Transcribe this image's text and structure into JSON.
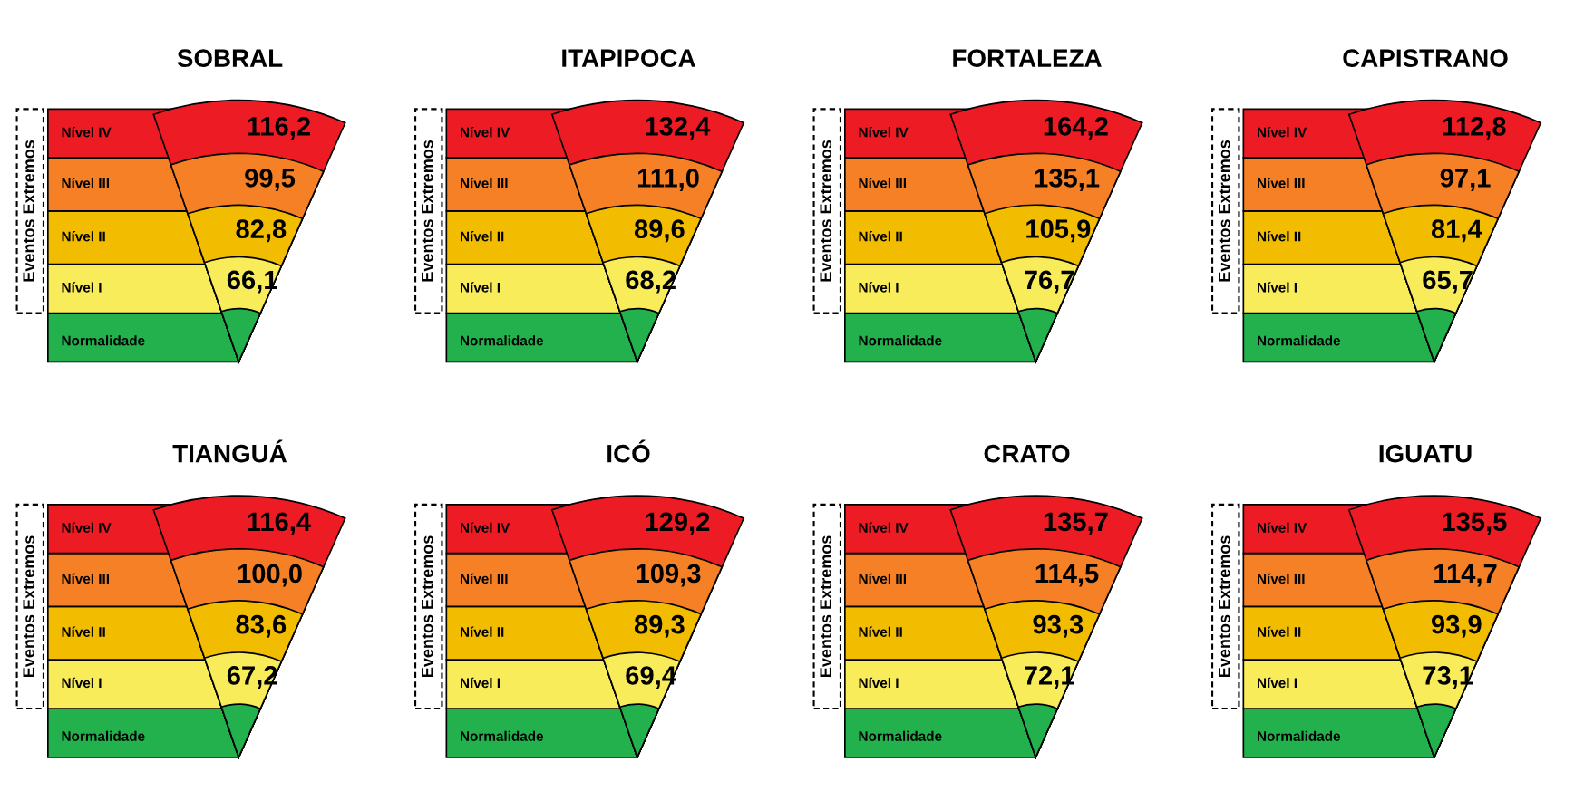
{
  "chart_data": [
    {
      "type": "other",
      "title": "SOBRAL",
      "ylabel": "Eventos Extremos",
      "categories": [
        "Normalidade",
        "Nível I",
        "Nível II",
        "Nível III",
        "Nível IV"
      ],
      "values": [
        null,
        66.1,
        82.8,
        99.5,
        116.2
      ],
      "value_labels": [
        null,
        "66,1",
        "82,8",
        "99,5",
        "116,2"
      ],
      "colors": [
        "#22b14c",
        "#f9ec5a",
        "#f2bd00",
        "#f58025",
        "#ed1c24"
      ]
    },
    {
      "type": "other",
      "title": "ITAPIPOCA",
      "ylabel": "Eventos Extremos",
      "categories": [
        "Normalidade",
        "Nível I",
        "Nível II",
        "Nível III",
        "Nível IV"
      ],
      "values": [
        null,
        68.2,
        89.6,
        111.0,
        132.4
      ],
      "value_labels": [
        null,
        "68,2",
        "89,6",
        "111,0",
        "132,4"
      ],
      "colors": [
        "#22b14c",
        "#f9ec5a",
        "#f2bd00",
        "#f58025",
        "#ed1c24"
      ]
    },
    {
      "type": "other",
      "title": "FORTALEZA",
      "ylabel": "Eventos Extremos",
      "categories": [
        "Normalidade",
        "Nível I",
        "Nível II",
        "Nível III",
        "Nível IV"
      ],
      "values": [
        null,
        76.7,
        105.9,
        135.1,
        164.2
      ],
      "value_labels": [
        null,
        "76,7",
        "105,9",
        "135,1",
        "164,2"
      ],
      "colors": [
        "#22b14c",
        "#f9ec5a",
        "#f2bd00",
        "#f58025",
        "#ed1c24"
      ]
    },
    {
      "type": "other",
      "title": "CAPISTRANO",
      "ylabel": "Eventos Extremos",
      "categories": [
        "Normalidade",
        "Nível I",
        "Nível II",
        "Nível III",
        "Nível IV"
      ],
      "values": [
        null,
        65.7,
        81.4,
        97.1,
        112.8
      ],
      "value_labels": [
        null,
        "65,7",
        "81,4",
        "97,1",
        "112,8"
      ],
      "colors": [
        "#22b14c",
        "#f9ec5a",
        "#f2bd00",
        "#f58025",
        "#ed1c24"
      ]
    },
    {
      "type": "other",
      "title": "TIANGUÁ",
      "ylabel": "Eventos Extremos",
      "categories": [
        "Normalidade",
        "Nível I",
        "Nível II",
        "Nível III",
        "Nível IV"
      ],
      "values": [
        null,
        67.2,
        83.6,
        100.0,
        116.4
      ],
      "value_labels": [
        null,
        "67,2",
        "83,6",
        "100,0",
        "116,4"
      ],
      "colors": [
        "#22b14c",
        "#f9ec5a",
        "#f2bd00",
        "#f58025",
        "#ed1c24"
      ]
    },
    {
      "type": "other",
      "title": "ICÓ",
      "ylabel": "Eventos Extremos",
      "categories": [
        "Normalidade",
        "Nível I",
        "Nível II",
        "Nível III",
        "Nível IV"
      ],
      "values": [
        null,
        69.4,
        89.3,
        109.3,
        129.2
      ],
      "value_labels": [
        null,
        "69,4",
        "89,3",
        "109,3",
        "129,2"
      ],
      "colors": [
        "#22b14c",
        "#f9ec5a",
        "#f2bd00",
        "#f58025",
        "#ed1c24"
      ]
    },
    {
      "type": "other",
      "title": "CRATO",
      "ylabel": "Eventos Extremos",
      "categories": [
        "Normalidade",
        "Nível I",
        "Nível II",
        "Nível III",
        "Nível IV"
      ],
      "values": [
        null,
        72.1,
        93.3,
        114.5,
        135.7
      ],
      "value_labels": [
        null,
        "72,1",
        "93,3",
        "114,5",
        "135,7"
      ],
      "colors": [
        "#22b14c",
        "#f9ec5a",
        "#f2bd00",
        "#f58025",
        "#ed1c24"
      ]
    },
    {
      "type": "other",
      "title": "IGUATU",
      "ylabel": "Eventos Extremos",
      "categories": [
        "Normalidade",
        "Nível I",
        "Nível II",
        "Nível III",
        "Nível IV"
      ],
      "values": [
        null,
        73.1,
        93.9,
        114.7,
        135.5
      ],
      "value_labels": [
        null,
        "73,1",
        "93,9",
        "114,7",
        "135,5"
      ],
      "colors": [
        "#22b14c",
        "#f9ec5a",
        "#f2bd00",
        "#f58025",
        "#ed1c24"
      ]
    }
  ]
}
